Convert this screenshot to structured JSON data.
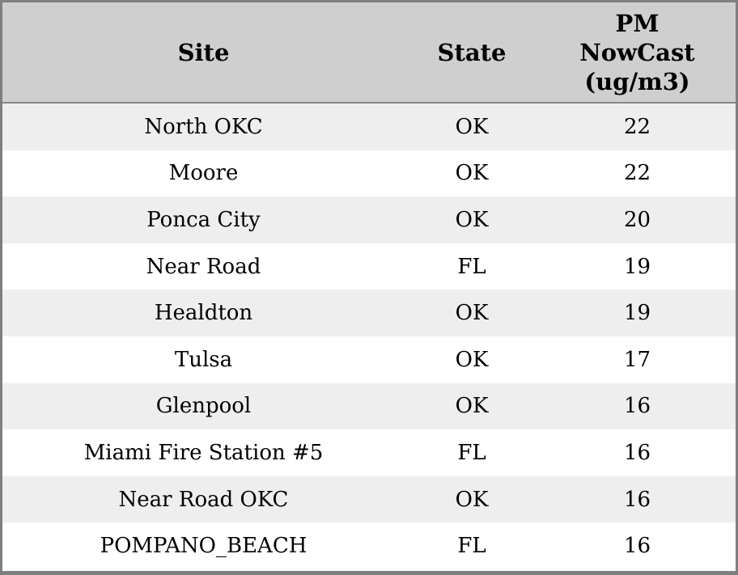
{
  "chart_data": {
    "type": "table",
    "columns": [
      "Site",
      "State",
      "PM NowCast (ug/m3)"
    ],
    "header_display": {
      "site": "Site",
      "state": "State",
      "pm": "PM\nNowCast\n(ug/m3)"
    },
    "rows": [
      {
        "site": "North OKC",
        "state": "OK",
        "pm": 22
      },
      {
        "site": "Moore",
        "state": "OK",
        "pm": 22
      },
      {
        "site": "Ponca City",
        "state": "OK",
        "pm": 20
      },
      {
        "site": "Near Road",
        "state": "FL",
        "pm": 19
      },
      {
        "site": "Healdton",
        "state": "OK",
        "pm": 19
      },
      {
        "site": "Tulsa",
        "state": "OK",
        "pm": 17
      },
      {
        "site": "Glenpool",
        "state": "OK",
        "pm": 16
      },
      {
        "site": "Miami Fire Station #5",
        "state": "FL",
        "pm": 16
      },
      {
        "site": "Near Road OKC",
        "state": "OK",
        "pm": 16
      },
      {
        "site": "POMPANO_BEACH",
        "state": "FL",
        "pm": 16
      }
    ]
  },
  "colors": {
    "header_bg": "#cfcfcf",
    "stripe_bg": "#eeeeee",
    "row_bg": "#ffffff",
    "frame_border": "#7f7f7f",
    "header_divider": "#858585",
    "text": "#000000"
  }
}
